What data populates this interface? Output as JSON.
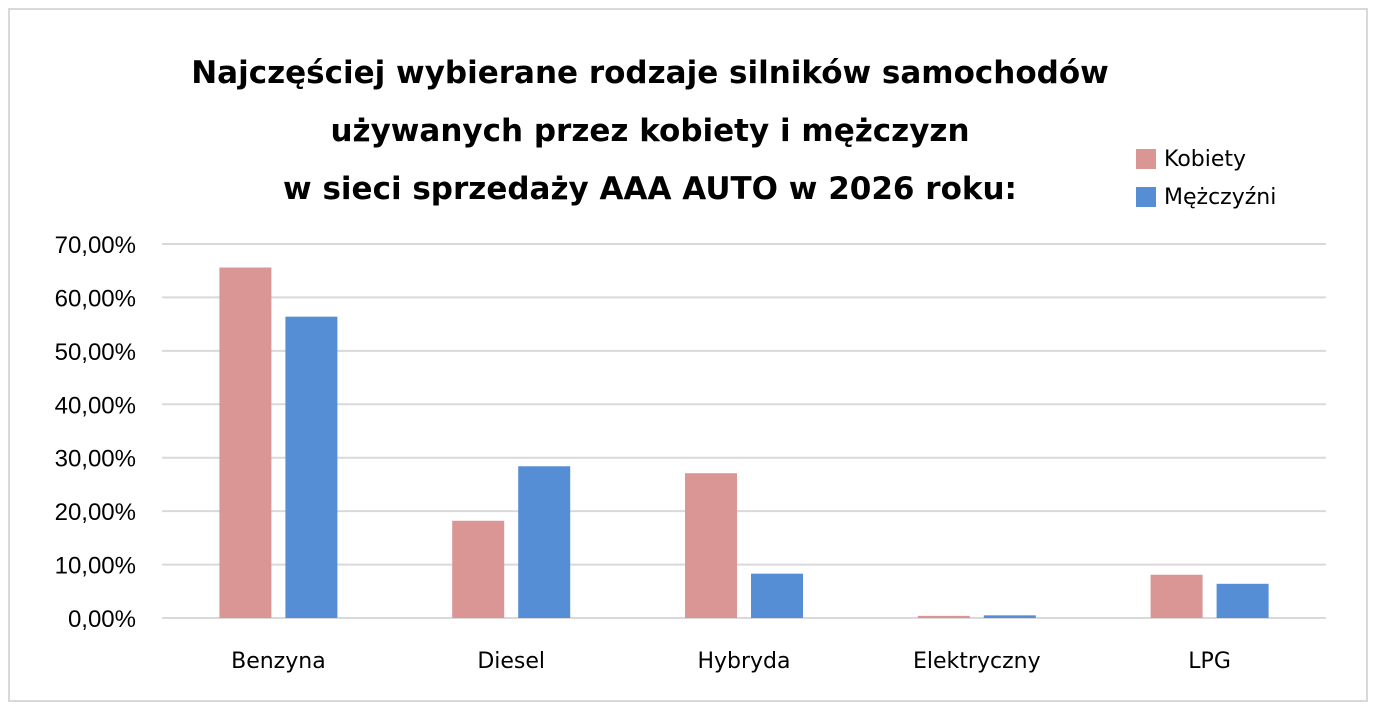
{
  "chart_data": {
    "type": "bar",
    "title_lines": [
      "Najczęściej wybierane rodzaje silników samochodów",
      "używanych przez kobiety i mężczyzn",
      "w sieci sprzedaży AAA AUTO w 2026 roku:"
    ],
    "categories": [
      "Benzyna",
      "Diesel",
      "Hybryda",
      "Elektryczny",
      "LPG"
    ],
    "series": [
      {
        "name": "Kobiety",
        "color": "#d99694",
        "values": [
          65.6,
          18.2,
          27.1,
          0.4,
          8.1
        ]
      },
      {
        "name": "Mężczyźni",
        "color": "#558ed5",
        "values": [
          56.4,
          28.4,
          8.3,
          0.5,
          6.4
        ]
      }
    ],
    "y_ticks": [
      "0,00%",
      "10,00%",
      "20,00%",
      "30,00%",
      "40,00%",
      "50,00%",
      "60,00%",
      "70,00%"
    ],
    "ylim": [
      0,
      70
    ],
    "grid": true,
    "legend_position": "top-right"
  }
}
